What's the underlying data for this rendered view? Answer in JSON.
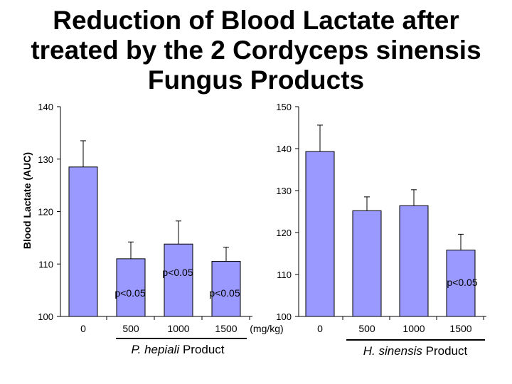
{
  "title_lines": [
    "Reduction of Blood Lactate after",
    "treated by the 2 Cordyceps sinensis",
    "Fungus Products"
  ],
  "chart_data": [
    {
      "type": "bar",
      "ylabel": "Blood Lactate (AUC)",
      "ylim": [
        100,
        140
      ],
      "yticks": [
        "100",
        "110",
        "120",
        "130",
        "140"
      ],
      "categories": [
        "0",
        "500",
        "1000",
        "1500"
      ],
      "unit_label": "(mg/kg)",
      "values": [
        128.5,
        111,
        113.8,
        110.5
      ],
      "error_upper": [
        133.5,
        114.2,
        118.2,
        113.2
      ],
      "product_label": {
        "italic": "P. hepiali",
        "normal": " Product"
      },
      "annotations": [
        "p<0.05",
        "p<0.05",
        "p<0.05"
      ],
      "bar_color": "#9999ff",
      "grid": false
    },
    {
      "type": "bar",
      "ylim": [
        100,
        150
      ],
      "yticks": [
        "100",
        "110",
        "120",
        "130",
        "140",
        "150"
      ],
      "categories": [
        "0",
        "500",
        "1000",
        "1500"
      ],
      "values": [
        139.3,
        125.2,
        126.4,
        115.8
      ],
      "error_upper": [
        145.6,
        128.5,
        130.2,
        119.6
      ],
      "product_label": {
        "italic": "H. sinensis",
        "normal": " Product"
      },
      "annotations": [
        "p<0.05"
      ],
      "bar_color": "#9999ff",
      "grid": false
    }
  ]
}
